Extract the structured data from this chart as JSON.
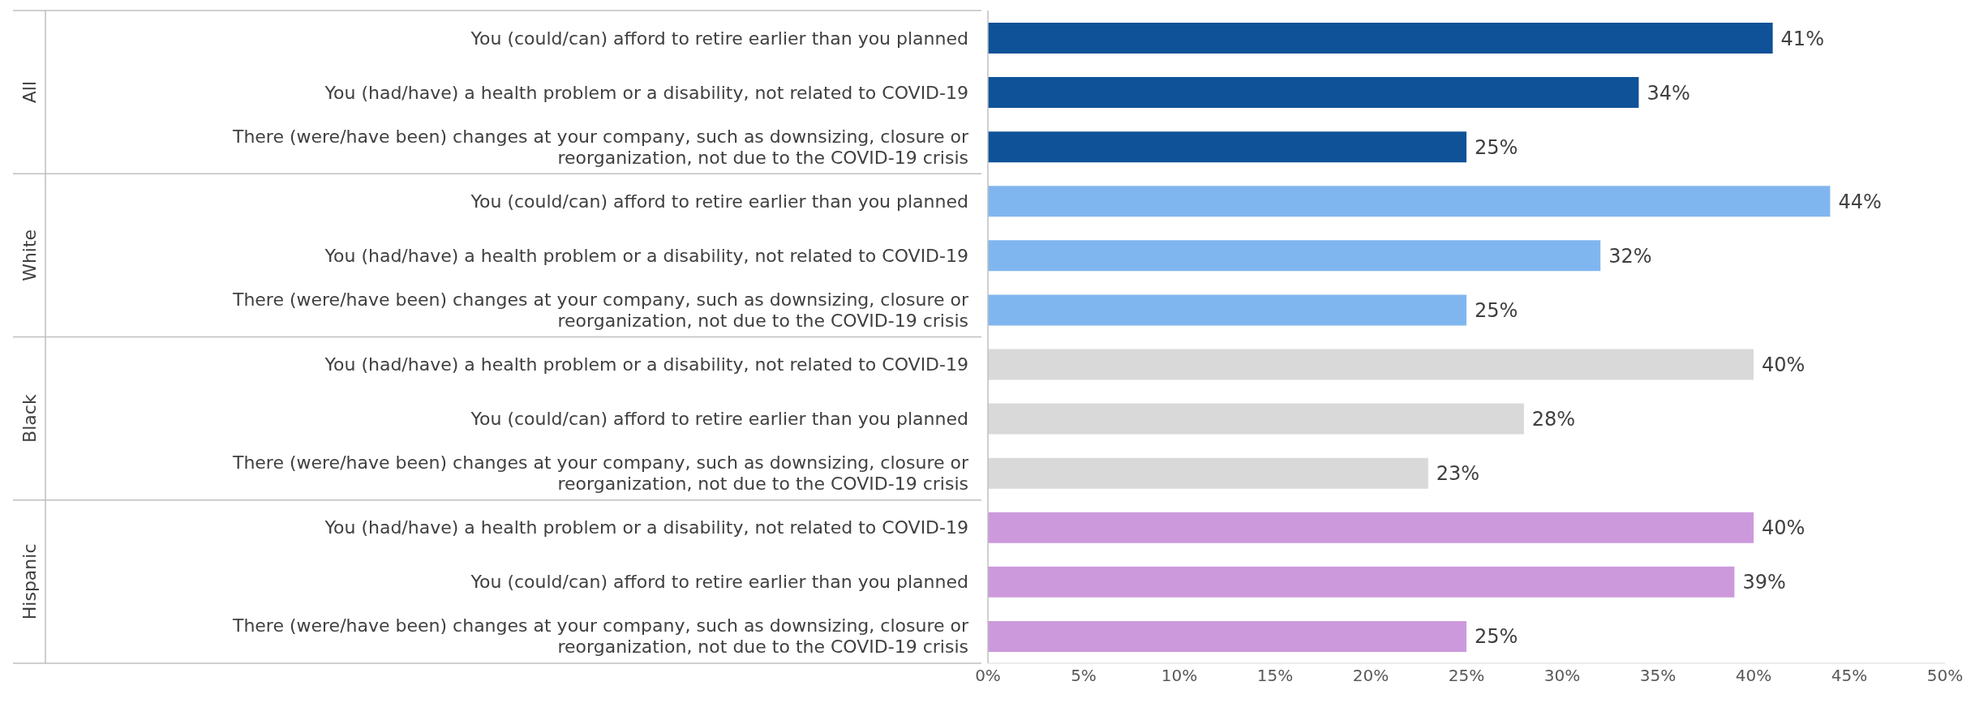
{
  "chart_data": {
    "type": "bar",
    "orientation": "horizontal",
    "categories": [
      "You (could/can) afford to retire earlier than you planned",
      "You (had/have) a health problem or a disability, not related to COVID-19",
      "There (were/have been) changes at your company, such as downsizing, closure or reorganization, not due to the COVID-19 crisis",
      "You (could/can) afford to retire earlier than you planned",
      "You (had/have) a health problem or a disability, not related to COVID-19",
      "There (were/have been) changes at your company, such as downsizing, closure or reorganization, not due to the COVID-19 crisis",
      "You (had/have) a health problem or a disability, not related to COVID-19",
      "You (could/can) afford to retire earlier than you planned",
      "There (were/have been) changes at your company, such as downsizing, closure or reorganization, not due to the COVID-19 crisis",
      "You (had/have) a health problem or a disability, not related to COVID-19",
      "You (could/can) afford to retire earlier than you planned",
      "There (were/have been) changes at your company, such as downsizing, closure or reorganization, not due to the COVID-19 crisis"
    ],
    "values": [
      41,
      34,
      25,
      44,
      32,
      25,
      40,
      28,
      23,
      40,
      39,
      25
    ],
    "value_labels": [
      "41%",
      "34%",
      "25%",
      "44%",
      "32%",
      "25%",
      "40%",
      "28%",
      "23%",
      "40%",
      "39%",
      "25%"
    ],
    "colors": [
      "#0f5298",
      "#0f5298",
      "#0f5298",
      "#80b6f0",
      "#80b6f0",
      "#80b6f0",
      "#d9d9d9",
      "#d9d9d9",
      "#d9d9d9",
      "#cc99dd",
      "#cc99dd",
      "#cc99dd"
    ],
    "annotations": [
      "All",
      "White",
      "Black",
      "Hispanic"
    ],
    "xlim": [
      0,
      50
    ],
    "xticks": [
      {
        "value": 0,
        "label": "0%"
      },
      {
        "value": 5,
        "label": "5%"
      },
      {
        "value": 10,
        "label": "10%"
      },
      {
        "value": 15,
        "label": "15%"
      },
      {
        "value": 20,
        "label": "20%"
      },
      {
        "value": 25,
        "label": "25%"
      },
      {
        "value": 30,
        "label": "30%"
      },
      {
        "value": 35,
        "label": "35%"
      },
      {
        "value": 40,
        "label": "40%"
      },
      {
        "value": 45,
        "label": "45%"
      },
      {
        "value": 50,
        "label": "50%"
      }
    ],
    "grid": false,
    "legend": false
  }
}
